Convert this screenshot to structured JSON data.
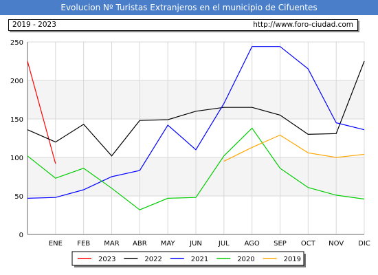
{
  "header": {
    "title": "Evolucion Nº Turistas Extranjeros en el municipio de Cifuentes",
    "period": "2019 - 2023",
    "url": "http://www.foro-ciudad.com"
  },
  "chart_data": {
    "type": "line",
    "categories": [
      "ENE",
      "FEB",
      "MAR",
      "ABR",
      "MAY",
      "JUN",
      "JUL",
      "AGO",
      "SEP",
      "OCT",
      "NOV",
      "DIC"
    ],
    "ylim": [
      0,
      250
    ],
    "yticks": [
      0,
      50,
      100,
      150,
      200,
      250
    ],
    "grid": true,
    "legend_position": "bottom",
    "series": [
      {
        "name": "2023",
        "color": "#ff0000",
        "points": [
          [
            0,
            225
          ],
          [
            1,
            92
          ]
        ]
      },
      {
        "name": "2022",
        "color": "#000000",
        "points": [
          [
            0,
            136
          ],
          [
            1,
            120
          ],
          [
            2,
            143
          ],
          [
            3,
            102
          ],
          [
            4,
            148
          ],
          [
            5,
            149
          ],
          [
            6,
            160
          ],
          [
            7,
            165
          ],
          [
            8,
            165
          ],
          [
            9,
            155
          ],
          [
            10,
            130
          ],
          [
            11,
            131
          ],
          [
            12,
            225
          ]
        ]
      },
      {
        "name": "2021",
        "color": "#0000ff",
        "points": [
          [
            0,
            47
          ],
          [
            1,
            48
          ],
          [
            2,
            58
          ],
          [
            3,
            75
          ],
          [
            4,
            83
          ],
          [
            5,
            142
          ],
          [
            6,
            110
          ],
          [
            7,
            170
          ],
          [
            8,
            244
          ],
          [
            9,
            244
          ],
          [
            10,
            215
          ],
          [
            11,
            145
          ],
          [
            12,
            136
          ]
        ]
      },
      {
        "name": "2020",
        "color": "#00cc00",
        "points": [
          [
            0,
            102
          ],
          [
            1,
            73
          ],
          [
            2,
            86
          ],
          [
            3,
            60
          ],
          [
            4,
            32
          ],
          [
            5,
            47
          ],
          [
            6,
            48
          ],
          [
            7,
            102
          ],
          [
            8,
            138
          ],
          [
            9,
            86
          ],
          [
            10,
            61
          ],
          [
            11,
            51
          ],
          [
            12,
            46
          ]
        ]
      },
      {
        "name": "2019",
        "color": "#ffa500",
        "points": [
          [
            7,
            95
          ],
          [
            8,
            113
          ],
          [
            9,
            129
          ],
          [
            10,
            106
          ],
          [
            11,
            100
          ],
          [
            12,
            104
          ]
        ]
      }
    ]
  }
}
